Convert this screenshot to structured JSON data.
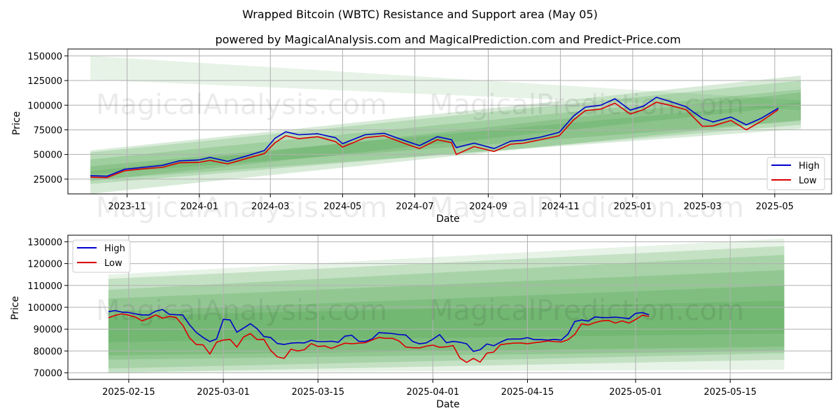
{
  "title": "Wrapped Bitcoin (WBTC) Resistance and Support area (May 05)",
  "subtitle": "powered by MagicalAnalysis.com and MagicalPrediction.com and Predict-Price.com",
  "watermarks": [
    "MagicalAnalysis.com",
    "MagicalPrediction.com"
  ],
  "colors": {
    "high": "#0000cc",
    "low": "#dd0000",
    "band": "#3d9a3d",
    "grid": "#b0b0b0"
  },
  "chart_data": [
    {
      "type": "line",
      "xlabel": "Date",
      "ylabel": "Price",
      "grid": true,
      "legend_position": "bottom-right",
      "legend": [
        "High",
        "Low"
      ],
      "x_ticks": [
        "2023-11",
        "2024-01",
        "2024-03",
        "2024-05",
        "2024-07",
        "2024-09",
        "2024-11",
        "2025-01",
        "2025-03",
        "2025-05"
      ],
      "y_ticks": [
        "25000",
        "50000",
        "75000",
        "100000",
        "125000",
        "150000"
      ],
      "ylim": [
        10000,
        157000
      ],
      "xlim": [
        "2023-09-12",
        "2025-06-18"
      ],
      "series": [
        {
          "name": "High",
          "dates": [
            "2023-10-01",
            "2023-10-15",
            "2023-10-30",
            "2023-11-15",
            "2023-12-01",
            "2023-12-15",
            "2024-01-01",
            "2024-01-10",
            "2024-01-25",
            "2024-02-10",
            "2024-02-25",
            "2024-03-05",
            "2024-03-14",
            "2024-03-25",
            "2024-04-10",
            "2024-04-25",
            "2024-05-01",
            "2024-05-20",
            "2024-06-05",
            "2024-06-25",
            "2024-07-05",
            "2024-07-20",
            "2024-08-01",
            "2024-08-05",
            "2024-08-20",
            "2024-09-06",
            "2024-09-20",
            "2024-10-01",
            "2024-10-15",
            "2024-10-31",
            "2024-11-12",
            "2024-11-22",
            "2024-12-05",
            "2024-12-17",
            "2024-12-30",
            "2025-01-10",
            "2025-01-21",
            "2025-02-01",
            "2025-02-15",
            "2025-03-01",
            "2025-03-10",
            "2025-03-25",
            "2025-04-07",
            "2025-04-20",
            "2025-05-04"
          ],
          "values": [
            28500,
            28000,
            35000,
            37000,
            39000,
            43500,
            44500,
            47000,
            43000,
            48500,
            54000,
            66500,
            73000,
            70000,
            71000,
            67000,
            61000,
            70000,
            71500,
            63000,
            59000,
            68000,
            65000,
            57000,
            61500,
            56000,
            63500,
            64500,
            67500,
            72500,
            89000,
            98000,
            100000,
            106500,
            95000,
            99000,
            108000,
            104000,
            98500,
            86500,
            83000,
            88000,
            80000,
            87000,
            97000
          ]
        },
        {
          "name": "Low",
          "dates": [
            "2023-10-01",
            "2023-10-15",
            "2023-10-30",
            "2023-11-15",
            "2023-12-01",
            "2023-12-15",
            "2024-01-01",
            "2024-01-10",
            "2024-01-25",
            "2024-02-10",
            "2024-02-25",
            "2024-03-05",
            "2024-03-14",
            "2024-03-25",
            "2024-04-10",
            "2024-04-25",
            "2024-05-01",
            "2024-05-20",
            "2024-06-05",
            "2024-06-25",
            "2024-07-05",
            "2024-07-20",
            "2024-08-01",
            "2024-08-05",
            "2024-08-20",
            "2024-09-06",
            "2024-09-20",
            "2024-10-01",
            "2024-10-15",
            "2024-10-31",
            "2024-11-12",
            "2024-11-22",
            "2024-12-05",
            "2024-12-17",
            "2024-12-30",
            "2025-01-10",
            "2025-01-21",
            "2025-02-01",
            "2025-02-15",
            "2025-03-01",
            "2025-03-10",
            "2025-03-25",
            "2025-04-07",
            "2025-04-20",
            "2025-05-04"
          ],
          "values": [
            27000,
            26500,
            33500,
            35500,
            37000,
            41500,
            42000,
            44000,
            40500,
            46000,
            51000,
            62000,
            69000,
            66000,
            68000,
            63000,
            57500,
            67000,
            69000,
            60000,
            56000,
            65000,
            62000,
            50000,
            58000,
            53000,
            60500,
            61500,
            65000,
            69000,
            85000,
            94500,
            96000,
            102000,
            91000,
            95500,
            103000,
            100000,
            95500,
            78500,
            79000,
            84500,
            75000,
            84000,
            95500
          ]
        }
      ]
    },
    {
      "type": "line",
      "xlabel": "Date",
      "ylabel": "Price",
      "grid": true,
      "legend_position": "top-left",
      "legend": [
        "High",
        "Low"
      ],
      "x_ticks": [
        "2025-02-15",
        "2025-03-01",
        "2025-03-15",
        "2025-04-01",
        "2025-04-15",
        "2025-05-01",
        "2025-05-15"
      ],
      "y_ticks": [
        "70000",
        "80000",
        "90000",
        "100000",
        "110000",
        "120000",
        "130000"
      ],
      "ylim": [
        67000,
        133000
      ],
      "xlim": [
        "2025-02-06",
        "2025-05-30"
      ],
      "series": [
        {
          "name": "High",
          "dates": [
            "2025-02-12",
            "2025-02-13",
            "2025-02-14",
            "2025-02-15",
            "2025-02-16",
            "2025-02-17",
            "2025-02-18",
            "2025-02-19",
            "2025-02-20",
            "2025-02-21",
            "2025-02-22",
            "2025-02-23",
            "2025-02-24",
            "2025-02-25",
            "2025-02-26",
            "2025-02-27",
            "2025-02-28",
            "2025-03-01",
            "2025-03-02",
            "2025-03-03",
            "2025-03-04",
            "2025-03-05",
            "2025-03-06",
            "2025-03-07",
            "2025-03-08",
            "2025-03-09",
            "2025-03-10",
            "2025-03-11",
            "2025-03-12",
            "2025-03-13",
            "2025-03-14",
            "2025-03-15",
            "2025-03-16",
            "2025-03-17",
            "2025-03-18",
            "2025-03-19",
            "2025-03-20",
            "2025-03-21",
            "2025-03-22",
            "2025-03-23",
            "2025-03-24",
            "2025-03-25",
            "2025-03-26",
            "2025-03-27",
            "2025-03-28",
            "2025-03-29",
            "2025-03-30",
            "2025-03-31",
            "2025-04-01",
            "2025-04-02",
            "2025-04-03",
            "2025-04-04",
            "2025-04-05",
            "2025-04-06",
            "2025-04-07",
            "2025-04-08",
            "2025-04-09",
            "2025-04-10",
            "2025-04-11",
            "2025-04-12",
            "2025-04-13",
            "2025-04-14",
            "2025-04-15",
            "2025-04-16",
            "2025-04-17",
            "2025-04-18",
            "2025-04-19",
            "2025-04-20",
            "2025-04-21",
            "2025-04-22",
            "2025-04-23",
            "2025-04-24",
            "2025-04-25",
            "2025-04-26",
            "2025-04-27",
            "2025-04-28",
            "2025-04-29",
            "2025-04-30",
            "2025-05-01",
            "2025-05-02",
            "2025-05-03"
          ],
          "values": [
            98000,
            98500,
            97800,
            97600,
            97000,
            96500,
            96500,
            98200,
            99000,
            96800,
            96600,
            96500,
            92000,
            88500,
            86200,
            84300,
            85500,
            94500,
            94200,
            88600,
            90500,
            92500,
            90200,
            86600,
            86200,
            83400,
            83000,
            83600,
            83800,
            83700,
            84900,
            84300,
            84300,
            84500,
            84000,
            86800,
            87200,
            84500,
            84400,
            85500,
            88400,
            88200,
            88000,
            87500,
            87300,
            84400,
            83300,
            83700,
            85400,
            87500,
            83800,
            84400,
            84000,
            83300,
            79800,
            80600,
            83200,
            82400,
            84000,
            85400,
            85500,
            85500,
            86100,
            85200,
            85200,
            85000,
            85300,
            85000,
            87800,
            93500,
            94200,
            93700,
            95600,
            95300,
            95300,
            95500,
            95200,
            94800,
            97200,
            97600,
            96500
          ]
        },
        {
          "name": "Low",
          "dates": [
            "2025-02-12",
            "2025-02-13",
            "2025-02-14",
            "2025-02-15",
            "2025-02-16",
            "2025-02-17",
            "2025-02-18",
            "2025-02-19",
            "2025-02-20",
            "2025-02-21",
            "2025-02-22",
            "2025-02-23",
            "2025-02-24",
            "2025-02-25",
            "2025-02-26",
            "2025-02-27",
            "2025-02-28",
            "2025-03-01",
            "2025-03-02",
            "2025-03-03",
            "2025-03-04",
            "2025-03-05",
            "2025-03-06",
            "2025-03-07",
            "2025-03-08",
            "2025-03-09",
            "2025-03-10",
            "2025-03-11",
            "2025-03-12",
            "2025-03-13",
            "2025-03-14",
            "2025-03-15",
            "2025-03-16",
            "2025-03-17",
            "2025-03-18",
            "2025-03-19",
            "2025-03-20",
            "2025-03-21",
            "2025-03-22",
            "2025-03-23",
            "2025-03-24",
            "2025-03-25",
            "2025-03-26",
            "2025-03-27",
            "2025-03-28",
            "2025-03-29",
            "2025-03-30",
            "2025-03-31",
            "2025-04-01",
            "2025-04-02",
            "2025-04-03",
            "2025-04-04",
            "2025-04-05",
            "2025-04-06",
            "2025-04-07",
            "2025-04-08",
            "2025-04-09",
            "2025-04-10",
            "2025-04-11",
            "2025-04-12",
            "2025-04-13",
            "2025-04-14",
            "2025-04-15",
            "2025-04-16",
            "2025-04-17",
            "2025-04-18",
            "2025-04-19",
            "2025-04-20",
            "2025-04-21",
            "2025-04-22",
            "2025-04-23",
            "2025-04-24",
            "2025-04-25",
            "2025-04-26",
            "2025-04-27",
            "2025-04-28",
            "2025-04-29",
            "2025-04-30",
            "2025-05-01",
            "2025-05-02",
            "2025-05-03"
          ],
          "values": [
            95200,
            96300,
            97000,
            96400,
            95500,
            93800,
            95000,
            96500,
            95000,
            95800,
            95400,
            91800,
            86000,
            83000,
            82800,
            78600,
            84000,
            85000,
            85300,
            81800,
            86400,
            88000,
            85200,
            85300,
            80300,
            77300,
            76600,
            80800,
            80000,
            80600,
            83400,
            82100,
            82300,
            81200,
            82400,
            83600,
            83300,
            83600,
            83800,
            85000,
            86200,
            85800,
            85800,
            84600,
            81800,
            81500,
            81400,
            82200,
            82700,
            81700,
            81900,
            82500,
            76800,
            74800,
            76600,
            74900,
            79000,
            79500,
            82900,
            83300,
            83600,
            83700,
            83300,
            83800,
            84100,
            84600,
            84300,
            84100,
            85200,
            87600,
            92400,
            91900,
            93000,
            93800,
            94000,
            92800,
            93800,
            92800,
            94400,
            96400,
            95800
          ]
        }
      ]
    }
  ]
}
